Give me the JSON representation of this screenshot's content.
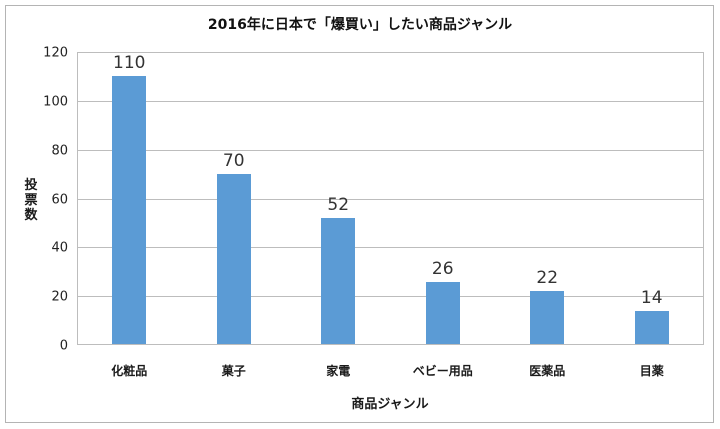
{
  "chart_data": {
    "type": "bar",
    "title": "2016年に日本で「爆買い」したい商品ジャンル",
    "xlabel": "商品ジャンル",
    "ylabel": "投票数",
    "categories": [
      "化粧品",
      "菓子",
      "家電",
      "ベビー用品",
      "医薬品",
      "目薬"
    ],
    "values": [
      110,
      70,
      52,
      26,
      22,
      14
    ],
    "ylim": [
      0,
      120
    ],
    "yticks": [
      0,
      20,
      40,
      60,
      80,
      100,
      120
    ],
    "grid": true,
    "legend": null,
    "bar_color": "#5b9bd5",
    "data_labels": true
  }
}
